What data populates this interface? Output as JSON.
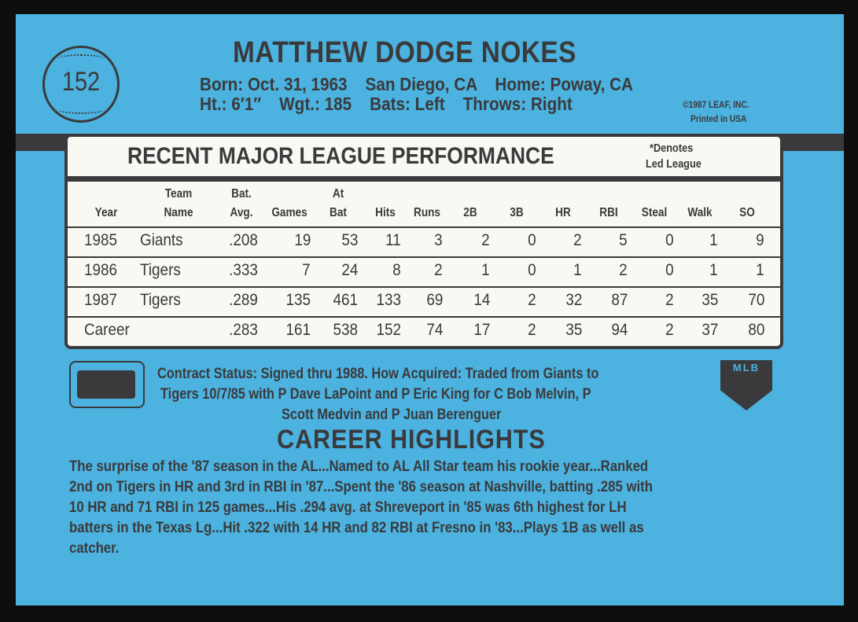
{
  "card_number": "152",
  "player_name": "MATTHEW DODGE NOKES",
  "bio": {
    "line1": "Born: Oct. 31, 1963    San Diego, CA    Home: Poway, CA",
    "line2": "Ht.: 6′1″    Wgt.: 185    Bats: Left    Throws: Right"
  },
  "copyright": "©1987 LEAF, INC.",
  "printed": "Printed in USA",
  "stats": {
    "title": "RECENT MAJOR LEAGUE PERFORMANCE",
    "note_line1": "*Denotes",
    "note_line2": "Led League",
    "columns": [
      {
        "top": "",
        "bottom": "Year"
      },
      {
        "top": "Team",
        "bottom": "Name"
      },
      {
        "top": "Bat.",
        "bottom": "Avg."
      },
      {
        "top": "",
        "bottom": "Games"
      },
      {
        "top": "At",
        "bottom": "Bat"
      },
      {
        "top": "",
        "bottom": "Hits"
      },
      {
        "top": "",
        "bottom": "Runs"
      },
      {
        "top": "",
        "bottom": "2B"
      },
      {
        "top": "",
        "bottom": "3B"
      },
      {
        "top": "",
        "bottom": "HR"
      },
      {
        "top": "",
        "bottom": "RBI"
      },
      {
        "top": "",
        "bottom": "Steal"
      },
      {
        "top": "",
        "bottom": "Walk"
      },
      {
        "top": "",
        "bottom": "SO"
      }
    ],
    "rows": [
      [
        "1985",
        "Giants",
        ".208",
        "19",
        "53",
        "11",
        "3",
        "2",
        "0",
        "2",
        "5",
        "0",
        "1",
        "9"
      ],
      [
        "1986",
        "Tigers",
        ".333",
        "7",
        "24",
        "8",
        "2",
        "1",
        "0",
        "1",
        "2",
        "0",
        "1",
        "1"
      ],
      [
        "1987",
        "Tigers",
        ".289",
        "135",
        "461",
        "133",
        "69",
        "14",
        "2",
        "32",
        "87",
        "2",
        "35",
        "70"
      ],
      [
        "Career",
        "",
        ".283",
        "161",
        "538",
        "152",
        "74",
        "17",
        "2",
        "35",
        "94",
        "2",
        "37",
        "80"
      ]
    ]
  },
  "contract": {
    "line1": "Contract Status: Signed thru 1988. How Acquired: Traded from Giants to",
    "line2": "Tigers 10/7/85 with P Dave LaPoint and P Eric King for C Bob Melvin, P",
    "line3": "Scott Medvin and P Juan Berenguer"
  },
  "highlights": {
    "title": "CAREER HIGHLIGHTS",
    "lines": [
      "The surprise of the '87 season in the AL...Named to AL All Star team his rookie year...Ranked",
      "2nd on Tigers in HR and 3rd in RBI in '87...Spent the '86 season at Nashville, batting .285 with",
      "10 HR and 71 RBI in 125 games...His .294 avg. at Shreveport in '85 was 6th highest for LH",
      "batters in the Texas Lg...Hit .322 with 14 HR and 82 RBI at Fresno in '83...Plays 1B as well as",
      "catcher."
    ]
  },
  "logos": {
    "left": "MLB Players Association logo",
    "right_text": "MLB"
  },
  "colors": {
    "card": "#4cb2df",
    "ink": "#3a3a3c",
    "panel": "#faf8f2"
  }
}
